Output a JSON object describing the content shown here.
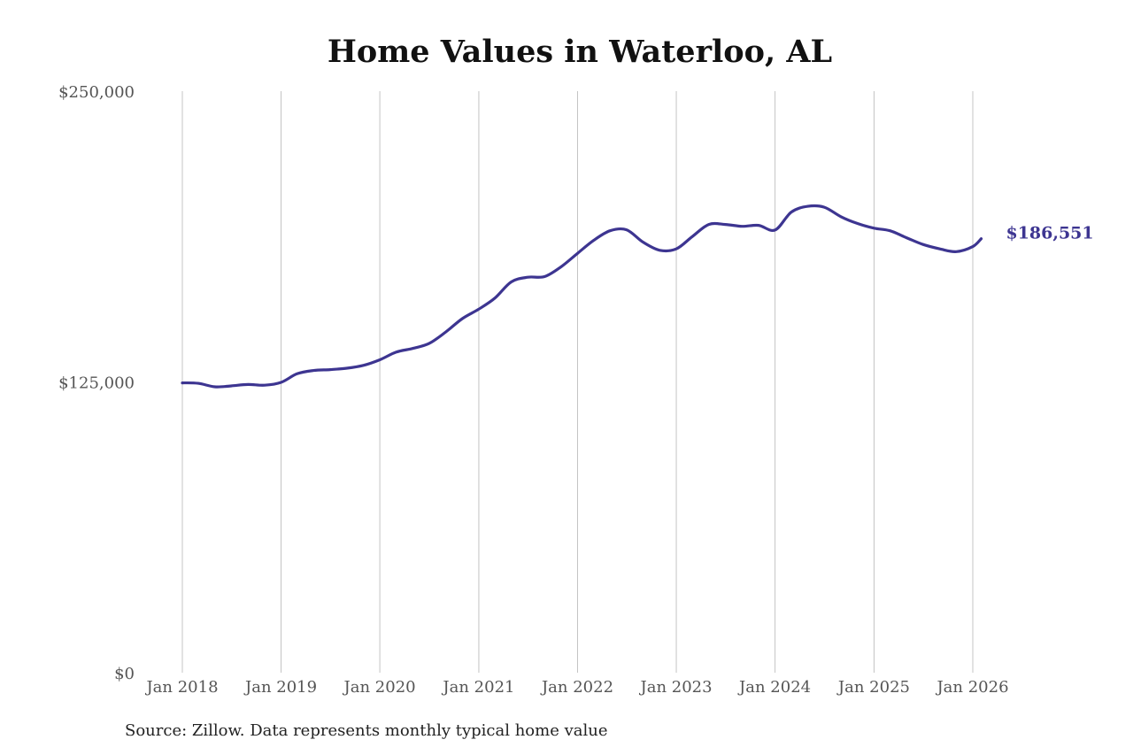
{
  "chart_data": {
    "type": "line",
    "title": "Home Values in Waterloo, AL",
    "source": "Source: Zillow. Data represents monthly typical home value",
    "ylim": [
      0,
      250000
    ],
    "y_ticks": [
      0,
      125000,
      250000
    ],
    "y_tick_labels": [
      "$0",
      "$125,000",
      "$250,000"
    ],
    "x_ticks": [
      "2018-01-01",
      "2019-01-01",
      "2020-01-01",
      "2021-01-01",
      "2022-01-01",
      "2023-01-01",
      "2024-01-01",
      "2025-01-01",
      "2026-01-01"
    ],
    "x_tick_labels": [
      "Jan 2018",
      "Jan 2019",
      "Jan 2020",
      "Jan 2021",
      "Jan 2022",
      "Jan 2023",
      "Jan 2024",
      "Jan 2025",
      "Jan 2026"
    ],
    "grid": {
      "vertical": true,
      "horizontal": false
    },
    "line_color": "#3d3591",
    "grid_color": "#c4c4c4",
    "end_label": "$186,551",
    "series": [
      {
        "x": [
          "2018-01",
          "2018-03",
          "2018-05",
          "2018-07",
          "2018-09",
          "2018-11",
          "2019-01",
          "2019-03",
          "2019-05",
          "2019-07",
          "2019-09",
          "2019-11",
          "2020-01",
          "2020-03",
          "2020-05",
          "2020-07",
          "2020-09",
          "2020-11",
          "2021-01",
          "2021-03",
          "2021-05",
          "2021-07",
          "2021-09",
          "2021-11",
          "2022-01",
          "2022-03",
          "2022-05",
          "2022-07",
          "2022-09",
          "2022-11",
          "2023-01",
          "2023-03",
          "2023-05",
          "2023-07",
          "2023-09",
          "2023-11",
          "2024-01",
          "2024-03",
          "2024-05",
          "2024-07",
          "2024-09",
          "2024-11",
          "2025-01",
          "2025-03",
          "2025-05",
          "2025-07",
          "2025-09",
          "2025-11",
          "2026-01",
          "2026-02"
        ],
        "y": [
          124600,
          124400,
          122900,
          123300,
          123900,
          123600,
          124800,
          128500,
          129900,
          130300,
          130900,
          132100,
          134500,
          137800,
          139400,
          141500,
          146500,
          152200,
          156300,
          161000,
          168000,
          170000,
          170300,
          174500,
          180300,
          185800,
          190000,
          190400,
          185000,
          181600,
          182200,
          187500,
          192700,
          192700,
          191900,
          192300,
          190300,
          198000,
          200500,
          200100,
          196000,
          193100,
          191100,
          190000,
          187000,
          184100,
          182200,
          181000,
          183200,
          186551
        ]
      }
    ]
  }
}
